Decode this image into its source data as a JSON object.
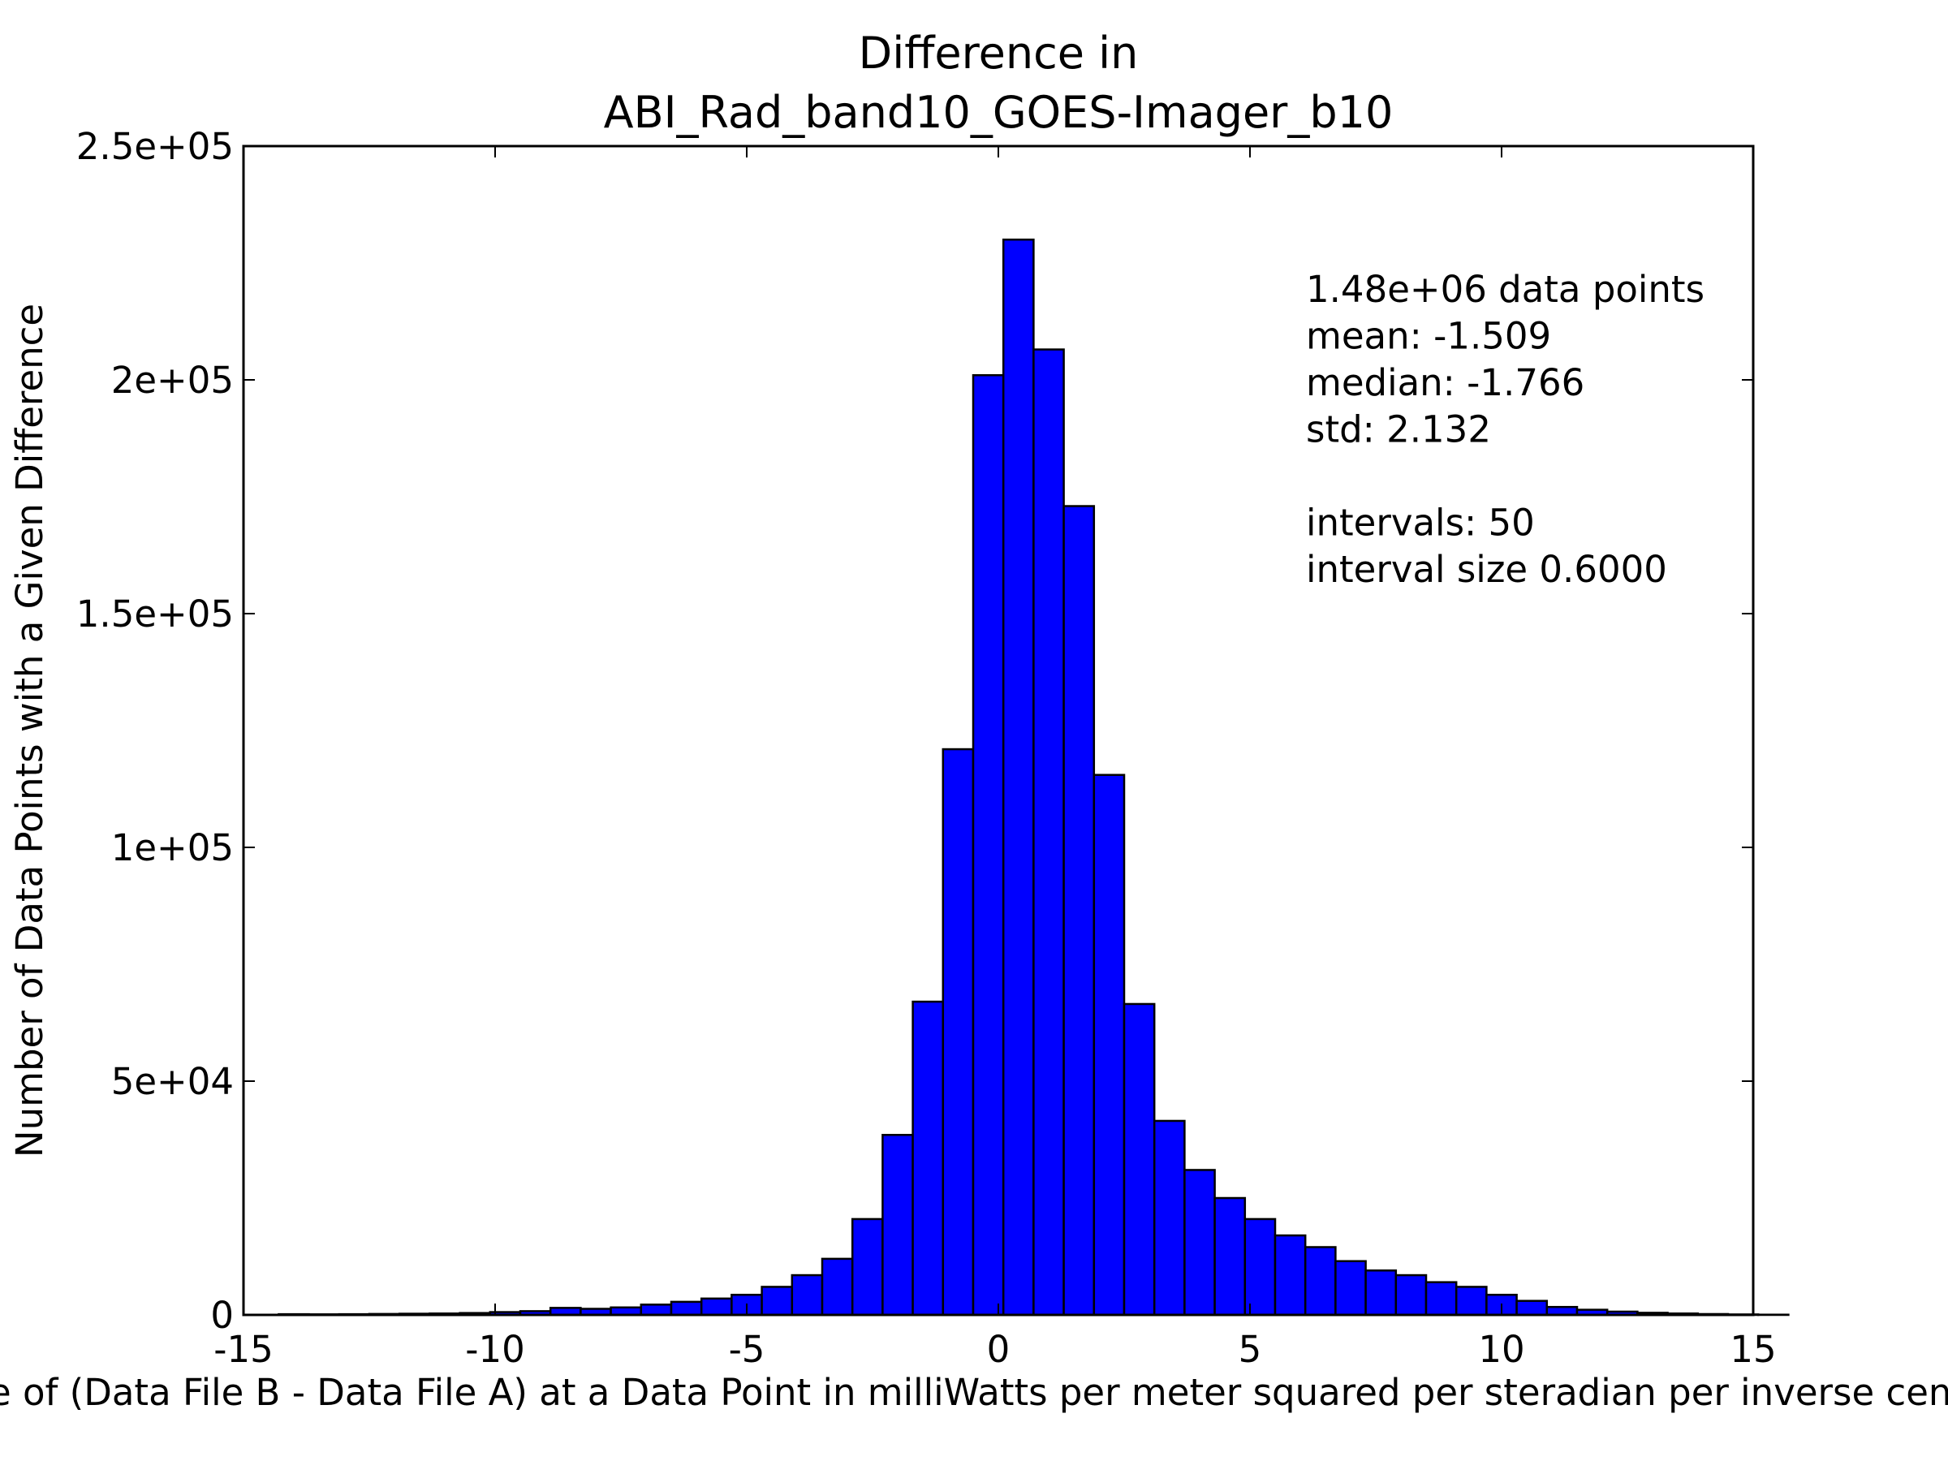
{
  "chart_data": {
    "type": "bar",
    "title": [
      "Difference in",
      "ABI_Rad_band10_GOES-Imager_b10"
    ],
    "xlabel": "Value of (Data File B - Data File A) at a Data Point in milliWatts per meter squared per steradian per inverse centimeter",
    "ylabel": "Number of Data Points with a Given Difference",
    "xlim": [
      -15,
      15
    ],
    "ylim": [
      0,
      250000
    ],
    "xticks": [
      -15,
      -10,
      -5,
      0,
      5,
      10,
      15
    ],
    "xtick_labels": [
      "-15",
      "-10",
      "-5",
      "0",
      "5",
      "10",
      "15"
    ],
    "yticks": [
      0,
      50000,
      100000,
      150000,
      200000,
      250000
    ],
    "ytick_labels": [
      "0",
      "5e+04",
      "1e+05",
      "1.5e+05",
      "2e+05",
      "2.5e+05"
    ],
    "grid": false,
    "bar_color": "#0000ff",
    "bar_edge_color": "#000000",
    "bin_start": -14.3,
    "bin_width": 0.6,
    "values": [
      150,
      120,
      150,
      200,
      250,
      300,
      400,
      600,
      800,
      1500,
      1300,
      1600,
      2200,
      2800,
      3500,
      4300,
      6000,
      8500,
      12000,
      20500,
      38500,
      67000,
      121000,
      201000,
      230000,
      206500,
      173000,
      115500,
      66500,
      41500,
      31000,
      25000,
      20500,
      17000,
      14500,
      11500,
      9500,
      8500,
      7000,
      6000,
      4300,
      3000,
      1700,
      1100,
      700,
      450,
      300,
      180,
      100,
      50
    ],
    "annotation_lines": [
      "1.48e+06 data points",
      "mean: -1.509",
      "median: -1.766",
      "std: 2.132",
      "",
      "intervals: 50",
      "interval size 0.6000"
    ]
  }
}
